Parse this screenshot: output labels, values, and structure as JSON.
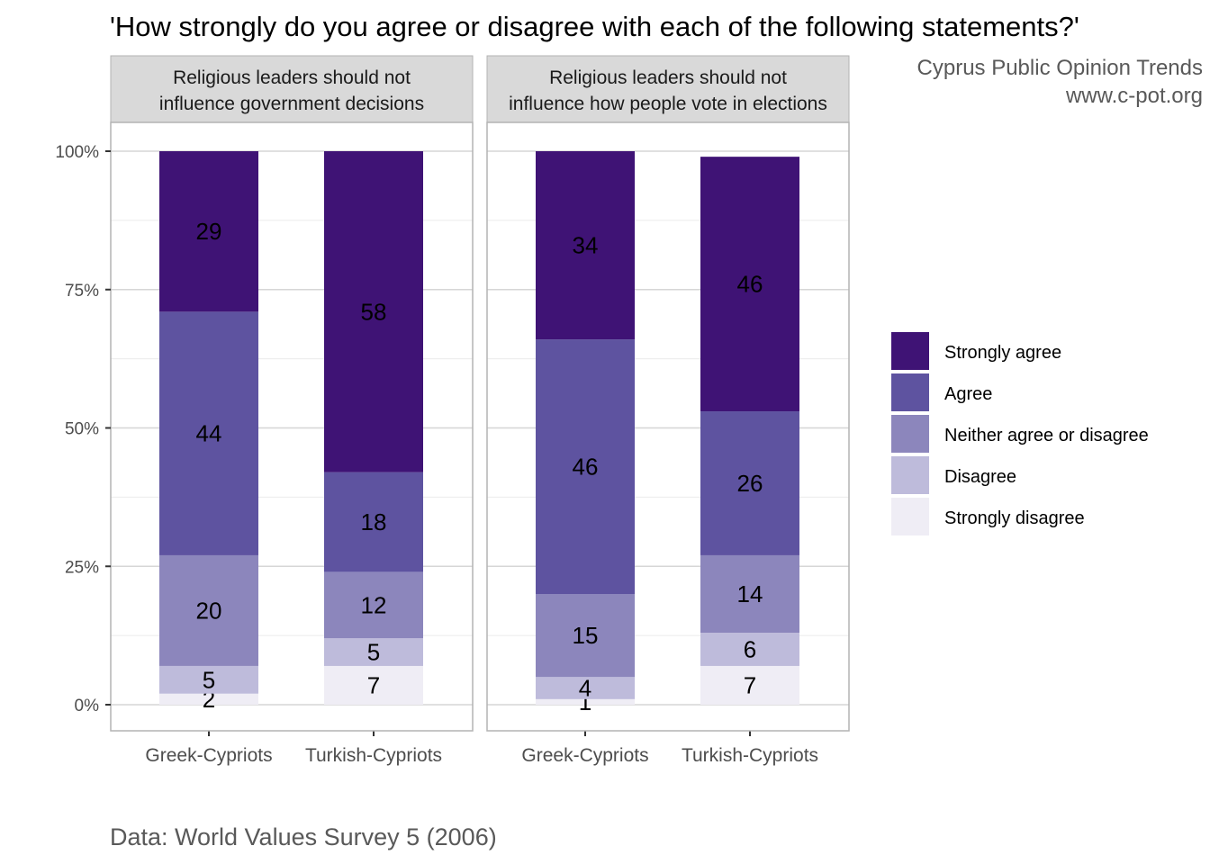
{
  "chart_data": {
    "type": "bar",
    "stacked": true,
    "title": "'How strongly do you agree or disagree with each of the following statements?'",
    "credit_lines": [
      "Cyprus Public Opinion Trends",
      "www.c-pot.org"
    ],
    "caption": "Data: World Values Survey 5 (2006)",
    "xlabel": "",
    "ylabel": "",
    "ylim": [
      0,
      100
    ],
    "y_ticks": [
      0,
      25,
      50,
      75,
      100
    ],
    "y_tick_labels": [
      "0%",
      "25%",
      "50%",
      "75%",
      "100%"
    ],
    "grid": true,
    "legend_position": "right",
    "categories": [
      "Greek-Cypriots",
      "Turkish-Cypriots"
    ],
    "legend": [
      {
        "name": "Strongly agree",
        "color": "#3f1375"
      },
      {
        "name": "Agree",
        "color": "#5e53a0"
      },
      {
        "name": "Neither agree or disagree",
        "color": "#8c86bc"
      },
      {
        "name": "Disagree",
        "color": "#bebbdb"
      },
      {
        "name": "Strongly disagree",
        "color": "#efedf5"
      }
    ],
    "panels": [
      {
        "strip": [
          "Religious leaders should not",
          "influence government decisions"
        ],
        "series": [
          {
            "name": "Strongly agree",
            "values": [
              29,
              58
            ]
          },
          {
            "name": "Agree",
            "values": [
              44,
              18
            ]
          },
          {
            "name": "Neither agree or disagree",
            "values": [
              20,
              12
            ]
          },
          {
            "name": "Disagree",
            "values": [
              5,
              5
            ]
          },
          {
            "name": "Strongly disagree",
            "values": [
              2,
              7
            ]
          }
        ]
      },
      {
        "strip": [
          "Religious leaders should not",
          "influence how people vote in elections"
        ],
        "series": [
          {
            "name": "Strongly agree",
            "values": [
              34,
              46
            ]
          },
          {
            "name": "Agree",
            "values": [
              46,
              26
            ]
          },
          {
            "name": "Neither agree or disagree",
            "values": [
              15,
              14
            ]
          },
          {
            "name": "Disagree",
            "values": [
              4,
              6
            ]
          },
          {
            "name": "Strongly disagree",
            "values": [
              1,
              7
            ]
          }
        ]
      }
    ]
  }
}
